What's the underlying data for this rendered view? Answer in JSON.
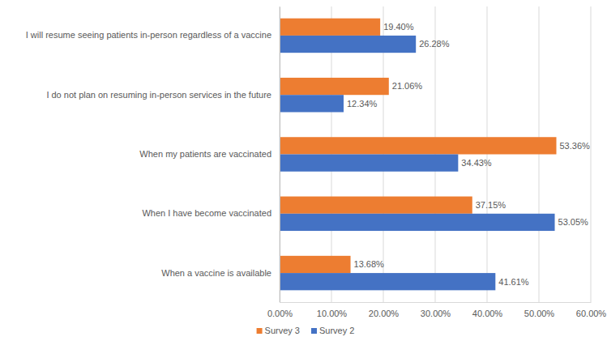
{
  "chart_data": {
    "type": "bar",
    "orientation": "horizontal",
    "categories": [
      "I will resume seeing patients in-person regardless of a vaccine",
      "I do not plan on resuming in-person services in the future",
      "When my patients are vaccinated",
      "When I have become vaccinated",
      "When a vaccine is available"
    ],
    "series": [
      {
        "name": "Survey 3",
        "color": "#ed7d31",
        "values": [
          19.4,
          21.06,
          53.36,
          37.15,
          13.68
        ],
        "value_labels": [
          "19.40%",
          "21.06%",
          "53.36%",
          "37.15%",
          "13.68%"
        ]
      },
      {
        "name": "Survey 2",
        "color": "#4472c4",
        "values": [
          26.28,
          12.34,
          34.43,
          53.05,
          41.61
        ],
        "value_labels": [
          "26.28%",
          "12.34%",
          "34.43%",
          "53.05%",
          "41.61%"
        ]
      }
    ],
    "xlim": [
      0,
      60
    ],
    "xticks": [
      {
        "value": 0,
        "label": "0.00%"
      },
      {
        "value": 10,
        "label": "10.00%"
      },
      {
        "value": 20,
        "label": "20.00%"
      },
      {
        "value": 30,
        "label": "30.00%"
      },
      {
        "value": 40,
        "label": "40.00%"
      },
      {
        "value": 50,
        "label": "50.00%"
      },
      {
        "value": 60,
        "label": "60.00%"
      }
    ],
    "grid": true,
    "data_labels": true,
    "legend": "bottom"
  }
}
